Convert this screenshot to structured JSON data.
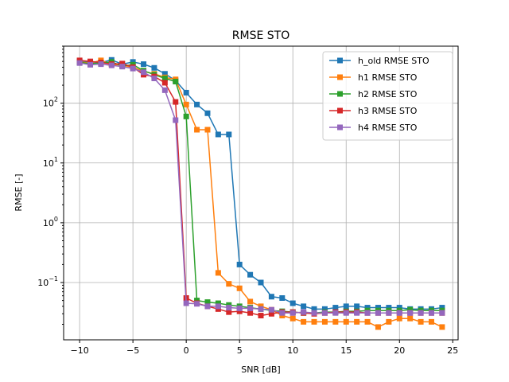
{
  "chart_data": {
    "type": "line",
    "title": "RMSE STO",
    "xlabel": "SNR [dB]",
    "ylabel": "RMSE [-]",
    "xlim": [
      -11.5,
      25.5
    ],
    "ylim": [
      0.011,
      900
    ],
    "yscale": "log",
    "grid": true,
    "legend": "top-right",
    "xticks": [
      -10,
      -5,
      0,
      5,
      10,
      15,
      20,
      25
    ],
    "xtick_labels": [
      "−10",
      "−5",
      "0",
      "5",
      "10",
      "15",
      "20",
      "25"
    ],
    "yticks": [
      0.1,
      1,
      10,
      100
    ],
    "ytick_labels": {
      "t1": {
        "base": "10",
        "exp": "−1"
      },
      "t2": {
        "base": "10",
        "exp": "0"
      },
      "t3": {
        "base": "10",
        "exp": "1"
      },
      "t4": {
        "base": "10",
        "exp": "2"
      }
    },
    "x": [
      -10,
      -9,
      -8,
      -7,
      -6,
      -5,
      -4,
      -3,
      -2,
      -1,
      0,
      1,
      2,
      3,
      4,
      5,
      6,
      7,
      8,
      9,
      10,
      11,
      12,
      13,
      14,
      15,
      16,
      17,
      18,
      19,
      20,
      21,
      22,
      23,
      24
    ],
    "series": [
      {
        "name": "h_old RMSE STO",
        "color": "#1f77b4",
        "values": [
          500,
          490,
          480,
          530,
          450,
          490,
          450,
          390,
          310,
          240,
          150,
          95,
          68,
          30,
          30,
          0.2,
          0.135,
          0.1,
          0.058,
          0.055,
          0.045,
          0.04,
          0.036,
          0.036,
          0.038,
          0.04,
          0.04,
          0.038,
          0.038,
          0.038,
          0.038,
          0.036,
          0.036,
          0.036,
          0.038
        ]
      },
      {
        "name": "h1 RMSE STO",
        "color": "#ff7f0e",
        "values": [
          490,
          470,
          520,
          450,
          430,
          400,
          340,
          310,
          270,
          250,
          95,
          36,
          36,
          0.145,
          0.095,
          0.08,
          0.048,
          0.04,
          0.035,
          0.028,
          0.025,
          0.022,
          0.022,
          0.022,
          0.022,
          0.022,
          0.022,
          0.022,
          0.018,
          0.022,
          0.025,
          0.025,
          0.022,
          0.022,
          0.018
        ]
      },
      {
        "name": "h2 RMSE STO",
        "color": "#2ca02c",
        "values": [
          480,
          460,
          470,
          490,
          420,
          440,
          350,
          300,
          260,
          230,
          60,
          0.05,
          0.047,
          0.045,
          0.042,
          0.04,
          0.038,
          0.036,
          0.034,
          0.033,
          0.032,
          0.031,
          0.031,
          0.032,
          0.032,
          0.033,
          0.033,
          0.034,
          0.034,
          0.034,
          0.034,
          0.035,
          0.034,
          0.034,
          0.034
        ]
      },
      {
        "name": "h3 RMSE STO",
        "color": "#d62728",
        "values": [
          520,
          500,
          480,
          450,
          460,
          400,
          300,
          280,
          220,
          105,
          0.055,
          0.045,
          0.04,
          0.036,
          0.032,
          0.033,
          0.031,
          0.028,
          0.03,
          0.032,
          0.032,
          0.031,
          0.03,
          0.031,
          0.032,
          0.032,
          0.032,
          0.031,
          0.031,
          0.031,
          0.031,
          0.031,
          0.031,
          0.031,
          0.031
        ]
      },
      {
        "name": "h4 RMSE STO",
        "color": "#9467bd",
        "values": [
          470,
          440,
          450,
          430,
          410,
          380,
          330,
          260,
          165,
          52,
          0.045,
          0.044,
          0.04,
          0.04,
          0.038,
          0.037,
          0.037,
          0.036,
          0.035,
          0.031,
          0.031,
          0.032,
          0.031,
          0.031,
          0.031,
          0.031,
          0.031,
          0.031,
          0.031,
          0.031,
          0.031,
          0.031,
          0.031,
          0.031,
          0.031
        ]
      }
    ]
  }
}
